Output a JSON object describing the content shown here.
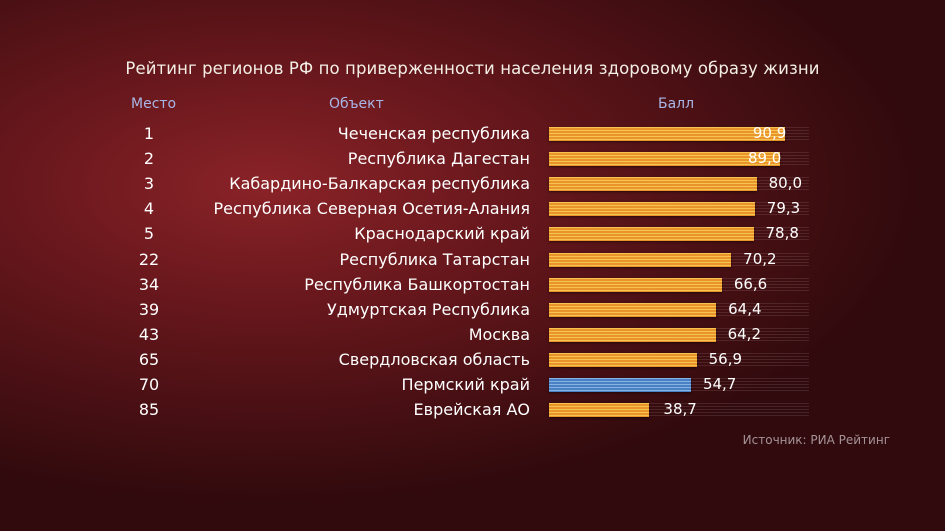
{
  "title": "Рейтинг регионов РФ по приверженности населения здоровому образу жизни",
  "headers": {
    "place": "Место",
    "object": "Объект",
    "score": "Балл"
  },
  "source": "Источник: РИА Рейтинг",
  "colors": {
    "bar": "#f0a83a",
    "highlight": "#5b8fd0"
  },
  "chart_data": {
    "type": "bar",
    "orientation": "horizontal",
    "title": "Рейтинг регионов РФ по приверженности населения здоровому образу жизни",
    "xlim": [
      0,
      100
    ],
    "highlighted": "Пермский край",
    "rows": [
      {
        "place": "1",
        "name": "Чеченская республика",
        "value": 90.9,
        "label": "90,9"
      },
      {
        "place": "2",
        "name": "Республика Дагестан",
        "value": 89.0,
        "label": "89,0"
      },
      {
        "place": "3",
        "name": "Кабардино-Балкарская республика",
        "value": 80.0,
        "label": "80,0"
      },
      {
        "place": "4",
        "name": "Республика Северная Осетия-Алания",
        "value": 79.3,
        "label": "79,3"
      },
      {
        "place": "5",
        "name": "Краснодарский край",
        "value": 78.8,
        "label": "78,8"
      },
      {
        "place": "22",
        "name": "Республика Татарстан",
        "value": 70.2,
        "label": "70,2"
      },
      {
        "place": "34",
        "name": "Республика Башкортостан",
        "value": 66.6,
        "label": "66,6"
      },
      {
        "place": "39",
        "name": "Удмуртская Республика",
        "value": 64.4,
        "label": "64,4"
      },
      {
        "place": "43",
        "name": "Москва",
        "value": 64.2,
        "label": "64,2"
      },
      {
        "place": "65",
        "name": "Свердловская область",
        "value": 56.9,
        "label": "56,9"
      },
      {
        "place": "70",
        "name": "Пермский край",
        "value": 54.7,
        "label": "54,7",
        "highlight": true
      },
      {
        "place": "85",
        "name": "Еврейская АО",
        "value": 38.7,
        "label": "38,7"
      }
    ]
  }
}
